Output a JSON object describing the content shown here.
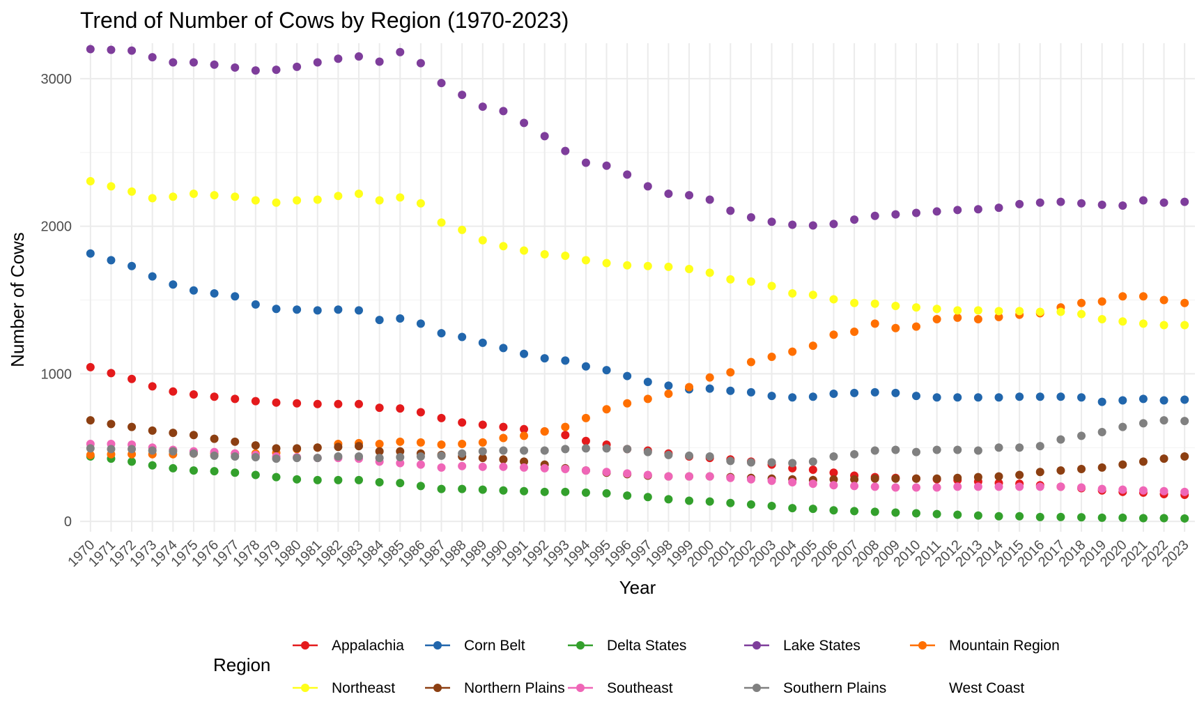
{
  "chart_data": {
    "type": "scatter",
    "title": "Trend of Number of Cows by Region (1970-2023)",
    "xlabel": "Year",
    "ylabel": "Number of Cows",
    "x": [
      1970,
      1971,
      1972,
      1973,
      1974,
      1975,
      1976,
      1977,
      1978,
      1979,
      1980,
      1981,
      1982,
      1983,
      1984,
      1985,
      1986,
      1987,
      1988,
      1989,
      1990,
      1991,
      1992,
      1993,
      1994,
      1995,
      1996,
      1997,
      1998,
      1999,
      2000,
      2001,
      2002,
      2003,
      2004,
      2005,
      2006,
      2007,
      2008,
      2009,
      2010,
      2011,
      2012,
      2013,
      2014,
      2015,
      2016,
      2017,
      2018,
      2019,
      2020,
      2021,
      2022,
      2023
    ],
    "ylim": [
      -70,
      3240
    ],
    "yticks": [
      0,
      1000,
      2000,
      3000
    ],
    "grid": true,
    "legend": {
      "title": "Region",
      "position": "bottom"
    },
    "series": [
      {
        "name": "Appalachia",
        "color": "#E41A1C",
        "values": [
          1045,
          1005,
          965,
          915,
          880,
          860,
          845,
          830,
          815,
          805,
          800,
          795,
          795,
          795,
          770,
          765,
          740,
          700,
          670,
          655,
          640,
          625,
          610,
          585,
          545,
          520,
          490,
          480,
          460,
          440,
          430,
          420,
          405,
          385,
          360,
          350,
          330,
          310,
          300,
          295,
          290,
          285,
          280,
          270,
          260,
          255,
          245,
          235,
          225,
          210,
          200,
          195,
          185,
          180
        ]
      },
      {
        "name": "Corn Belt",
        "color": "#2166AC",
        "values": [
          1815,
          1770,
          1730,
          1660,
          1605,
          1565,
          1545,
          1525,
          1470,
          1440,
          1435,
          1430,
          1435,
          1430,
          1365,
          1375,
          1340,
          1275,
          1250,
          1210,
          1175,
          1135,
          1105,
          1090,
          1050,
          1025,
          985,
          945,
          920,
          895,
          900,
          885,
          875,
          850,
          840,
          845,
          865,
          870,
          875,
          870,
          850,
          840,
          840,
          840,
          840,
          845,
          845,
          845,
          840,
          810,
          820,
          830,
          820,
          825
        ]
      },
      {
        "name": "Delta States",
        "color": "#33A02C",
        "values": [
          440,
          425,
          405,
          380,
          360,
          345,
          340,
          330,
          315,
          300,
          285,
          280,
          280,
          280,
          265,
          260,
          240,
          220,
          220,
          215,
          210,
          205,
          200,
          200,
          195,
          190,
          175,
          165,
          150,
          140,
          135,
          125,
          115,
          105,
          90,
          85,
          75,
          70,
          65,
          60,
          55,
          50,
          45,
          40,
          35,
          35,
          30,
          30,
          28,
          25,
          25,
          22,
          22,
          20
        ]
      },
      {
        "name": "Lake States",
        "color": "#7E3D9B",
        "values": [
          3200,
          3195,
          3190,
          3145,
          3110,
          3110,
          3095,
          3075,
          3055,
          3060,
          3080,
          3110,
          3135,
          3150,
          3115,
          3180,
          3105,
          2970,
          2890,
          2810,
          2780,
          2700,
          2610,
          2510,
          2430,
          2410,
          2350,
          2270,
          2220,
          2210,
          2180,
          2105,
          2060,
          2030,
          2010,
          2005,
          2015,
          2045,
          2070,
          2080,
          2090,
          2100,
          2110,
          2115,
          2125,
          2150,
          2160,
          2165,
          2155,
          2145,
          2140,
          2175,
          2160,
          2165
        ]
      },
      {
        "name": "Mountain Region",
        "color": "#FF6F00",
        "values": [
          450,
          455,
          455,
          455,
          455,
          460,
          460,
          460,
          460,
          465,
          490,
          500,
          525,
          530,
          525,
          540,
          535,
          520,
          525,
          535,
          565,
          580,
          610,
          640,
          700,
          760,
          800,
          830,
          865,
          910,
          975,
          1010,
          1080,
          1115,
          1150,
          1190,
          1265,
          1285,
          1340,
          1310,
          1320,
          1370,
          1380,
          1370,
          1385,
          1400,
          1410,
          1450,
          1480,
          1490,
          1525,
          1525,
          1500,
          1480
        ]
      },
      {
        "name": "Northeast",
        "color": "#FFFF1A",
        "values": [
          2305,
          2270,
          2235,
          2190,
          2200,
          2220,
          2210,
          2200,
          2175,
          2160,
          2175,
          2180,
          2205,
          2220,
          2175,
          2195,
          2155,
          2025,
          1975,
          1905,
          1865,
          1835,
          1810,
          1800,
          1770,
          1750,
          1735,
          1730,
          1725,
          1710,
          1685,
          1640,
          1625,
          1595,
          1545,
          1535,
          1505,
          1480,
          1475,
          1460,
          1450,
          1440,
          1430,
          1430,
          1425,
          1425,
          1420,
          1420,
          1405,
          1370,
          1355,
          1340,
          1330,
          1330
        ]
      },
      {
        "name": "Northern Plains",
        "color": "#8C3F12",
        "values": [
          685,
          660,
          640,
          615,
          600,
          585,
          560,
          540,
          515,
          495,
          495,
          500,
          505,
          510,
          475,
          475,
          460,
          450,
          440,
          430,
          420,
          405,
          385,
          360,
          345,
          330,
          320,
          310,
          305,
          305,
          305,
          300,
          295,
          290,
          285,
          280,
          285,
          285,
          290,
          290,
          290,
          290,
          295,
          300,
          305,
          315,
          335,
          345,
          355,
          365,
          385,
          405,
          425,
          440
        ]
      },
      {
        "name": "Southeast",
        "color": "#EF66B7",
        "values": [
          525,
          525,
          520,
          500,
          485,
          475,
          470,
          460,
          450,
          440,
          435,
          430,
          430,
          425,
          405,
          395,
          385,
          365,
          375,
          370,
          370,
          365,
          360,
          355,
          345,
          335,
          325,
          315,
          305,
          305,
          305,
          295,
          285,
          275,
          265,
          255,
          245,
          240,
          235,
          230,
          230,
          230,
          235,
          235,
          235,
          235,
          235,
          235,
          230,
          220,
          215,
          210,
          205,
          200
        ]
      },
      {
        "name": "Southern Plains",
        "color": "#808080",
        "values": [
          495,
          490,
          490,
          480,
          475,
          460,
          445,
          440,
          435,
          425,
          430,
          430,
          440,
          440,
          430,
          435,
          440,
          445,
          460,
          475,
          480,
          480,
          480,
          490,
          495,
          495,
          490,
          470,
          450,
          445,
          440,
          410,
          400,
          400,
          395,
          405,
          440,
          455,
          480,
          485,
          470,
          485,
          485,
          480,
          500,
          500,
          510,
          555,
          580,
          605,
          640,
          665,
          685,
          680
        ]
      },
      {
        "name": "West Coast",
        "color": "",
        "values": []
      }
    ]
  }
}
